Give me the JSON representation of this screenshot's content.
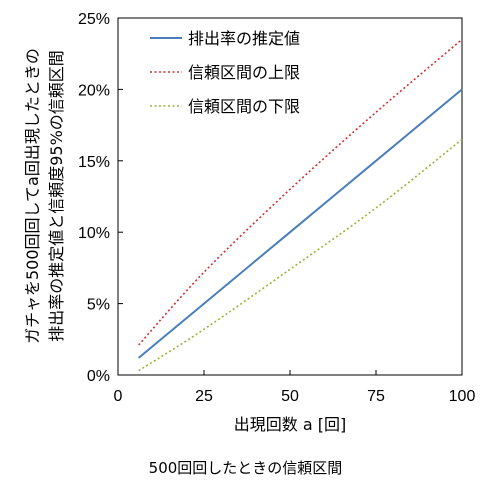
{
  "chart_data": {
    "type": "line",
    "xlabel": "出現回数 a [回]",
    "ylabel_line1": "ガチャを500回回してa回出現したときの",
    "ylabel_line2": "排出率の推定値と信頼度95%の信頼区間",
    "xlim": [
      0,
      100
    ],
    "ylim": [
      0,
      0.25
    ],
    "xticks": [
      "0",
      "25",
      "50",
      "75",
      "100"
    ],
    "yticks": [
      "0%",
      "5%",
      "10%",
      "15%",
      "20%",
      "25%"
    ],
    "x": [
      6,
      25,
      50,
      75,
      100
    ],
    "series": [
      {
        "name": "排出率の推定値",
        "color": "#4a7ebb",
        "dash": "solid",
        "values": [
          0.012,
          0.05,
          0.1,
          0.15,
          0.2
        ]
      },
      {
        "name": "信頼区間の上限",
        "color": "#cc3333",
        "dash": "dotted",
        "values": [
          0.021,
          0.072,
          0.13,
          0.184,
          0.235
        ]
      },
      {
        "name": "信頼区間の下限",
        "color": "#9bb13a",
        "dash": "dotted",
        "values": [
          0.003,
          0.032,
          0.074,
          0.117,
          0.165
        ]
      }
    ],
    "grid": false,
    "legend_position": "top-left"
  },
  "caption": "500回回したときの信頼区間"
}
